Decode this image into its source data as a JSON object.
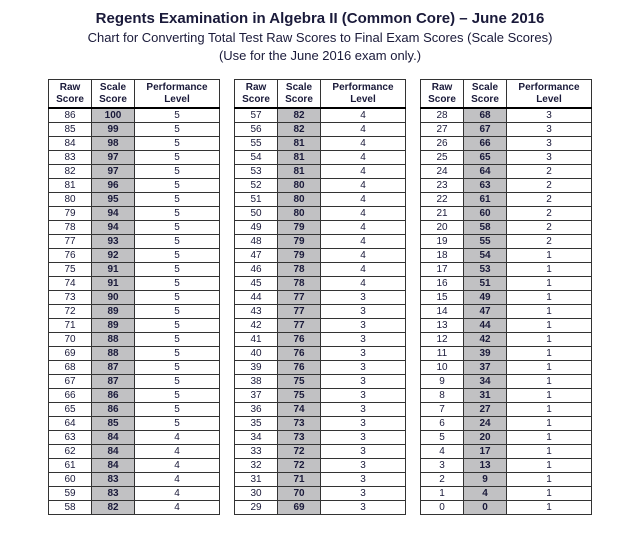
{
  "header": {
    "title": "Regents Examination in Algebra II (Common Core) – June 2016",
    "subtitle": "Chart for Converting Total Test Raw Scores to Final Exam Scores (Scale Scores)",
    "note": "(Use for the June 2016 exam only.)"
  },
  "columns": {
    "raw": "Raw Score",
    "scale": "Scale Score",
    "perf": "Performance Level"
  },
  "colors": {
    "background": "#ffffff",
    "scale_col_bg": "#c1c1c3",
    "border": "#333333",
    "text": "#1a1a3a"
  },
  "tables": [
    {
      "rows": [
        [
          86,
          100,
          5
        ],
        [
          85,
          99,
          5
        ],
        [
          84,
          98,
          5
        ],
        [
          83,
          97,
          5
        ],
        [
          82,
          97,
          5
        ],
        [
          81,
          96,
          5
        ],
        [
          80,
          95,
          5
        ],
        [
          79,
          94,
          5
        ],
        [
          78,
          94,
          5
        ],
        [
          77,
          93,
          5
        ],
        [
          76,
          92,
          5
        ],
        [
          75,
          91,
          5
        ],
        [
          74,
          91,
          5
        ],
        [
          73,
          90,
          5
        ],
        [
          72,
          89,
          5
        ],
        [
          71,
          89,
          5
        ],
        [
          70,
          88,
          5
        ],
        [
          69,
          88,
          5
        ],
        [
          68,
          87,
          5
        ],
        [
          67,
          87,
          5
        ],
        [
          66,
          86,
          5
        ],
        [
          65,
          86,
          5
        ],
        [
          64,
          85,
          5
        ],
        [
          63,
          84,
          4
        ],
        [
          62,
          84,
          4
        ],
        [
          61,
          84,
          4
        ],
        [
          60,
          83,
          4
        ],
        [
          59,
          83,
          4
        ],
        [
          58,
          82,
          4
        ]
      ]
    },
    {
      "rows": [
        [
          57,
          82,
          4
        ],
        [
          56,
          82,
          4
        ],
        [
          55,
          81,
          4
        ],
        [
          54,
          81,
          4
        ],
        [
          53,
          81,
          4
        ],
        [
          52,
          80,
          4
        ],
        [
          51,
          80,
          4
        ],
        [
          50,
          80,
          4
        ],
        [
          49,
          79,
          4
        ],
        [
          48,
          79,
          4
        ],
        [
          47,
          79,
          4
        ],
        [
          46,
          78,
          4
        ],
        [
          45,
          78,
          4
        ],
        [
          44,
          77,
          3
        ],
        [
          43,
          77,
          3
        ],
        [
          42,
          77,
          3
        ],
        [
          41,
          76,
          3
        ],
        [
          40,
          76,
          3
        ],
        [
          39,
          76,
          3
        ],
        [
          38,
          75,
          3
        ],
        [
          37,
          75,
          3
        ],
        [
          36,
          74,
          3
        ],
        [
          35,
          73,
          3
        ],
        [
          34,
          73,
          3
        ],
        [
          33,
          72,
          3
        ],
        [
          32,
          72,
          3
        ],
        [
          31,
          71,
          3
        ],
        [
          30,
          70,
          3
        ],
        [
          29,
          69,
          3
        ]
      ]
    },
    {
      "rows": [
        [
          28,
          68,
          3
        ],
        [
          27,
          67,
          3
        ],
        [
          26,
          66,
          3
        ],
        [
          25,
          65,
          3
        ],
        [
          24,
          64,
          2
        ],
        [
          23,
          63,
          2
        ],
        [
          22,
          61,
          2
        ],
        [
          21,
          60,
          2
        ],
        [
          20,
          58,
          2
        ],
        [
          19,
          55,
          2
        ],
        [
          18,
          54,
          1
        ],
        [
          17,
          53,
          1
        ],
        [
          16,
          51,
          1
        ],
        [
          15,
          49,
          1
        ],
        [
          14,
          47,
          1
        ],
        [
          13,
          44,
          1
        ],
        [
          12,
          42,
          1
        ],
        [
          11,
          39,
          1
        ],
        [
          10,
          37,
          1
        ],
        [
          9,
          34,
          1
        ],
        [
          8,
          31,
          1
        ],
        [
          7,
          27,
          1
        ],
        [
          6,
          24,
          1
        ],
        [
          5,
          20,
          1
        ],
        [
          4,
          17,
          1
        ],
        [
          3,
          13,
          1
        ],
        [
          2,
          9,
          1
        ],
        [
          1,
          4,
          1
        ],
        [
          0,
          0,
          1
        ]
      ]
    }
  ]
}
